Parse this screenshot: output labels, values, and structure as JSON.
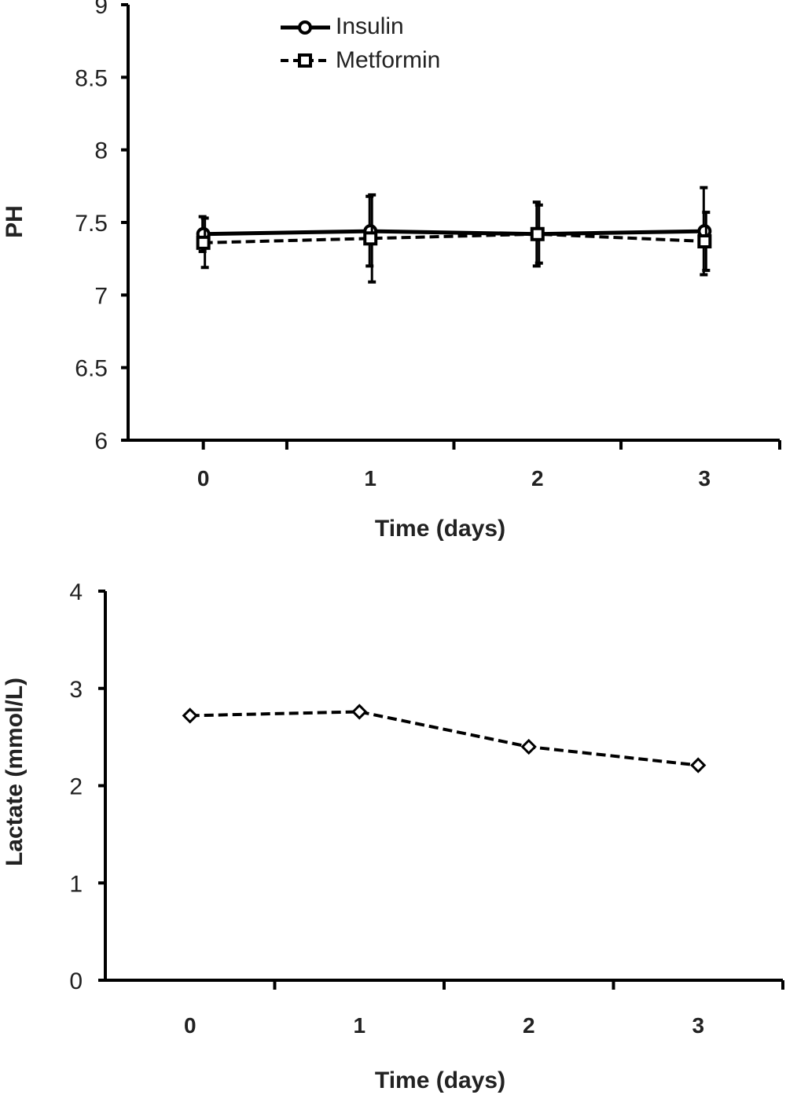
{
  "chart_data": [
    {
      "type": "line",
      "xlabel": "Time (days)",
      "ylabel": "PH",
      "ylim": [
        6,
        9
      ],
      "xlim": [
        -0.45,
        3.45
      ],
      "y_ticks": [
        "6",
        "6.5",
        "7",
        "7.5",
        "8",
        "8.5",
        "9"
      ],
      "x_ticks": [
        "0",
        "1",
        "2",
        "3"
      ],
      "x": [
        0,
        1,
        2,
        3
      ],
      "legend_position": "top-center",
      "grid": false,
      "series": [
        {
          "name": "Insulin",
          "marker": "circle",
          "line_style": "solid",
          "values": [
            7.42,
            7.44,
            7.42,
            7.44
          ],
          "error": [
            0.12,
            0.24,
            0.22,
            0.3
          ]
        },
        {
          "name": "Metformin",
          "marker": "square",
          "line_style": "dashed",
          "values": [
            7.36,
            7.39,
            7.42,
            7.37
          ],
          "error": [
            0.17,
            0.3,
            0.2,
            0.2
          ]
        }
      ]
    },
    {
      "type": "line",
      "xlabel": "Time (days)",
      "ylabel": "Lactate (mmol/L)",
      "ylim": [
        0,
        4
      ],
      "xlim": [
        -0.5,
        3.5
      ],
      "y_ticks": [
        "0",
        "1",
        "2",
        "3",
        "4"
      ],
      "x_ticks": [
        "0",
        "1",
        "2",
        "3"
      ],
      "x": [
        0,
        1,
        2,
        3
      ],
      "grid": false,
      "series": [
        {
          "marker": "diamond",
          "line_style": "dashed",
          "values": [
            2.72,
            2.76,
            2.4,
            2.21
          ]
        }
      ]
    }
  ],
  "colors": {
    "ink": "#000000",
    "text": "#222222",
    "background": "#ffffff"
  }
}
